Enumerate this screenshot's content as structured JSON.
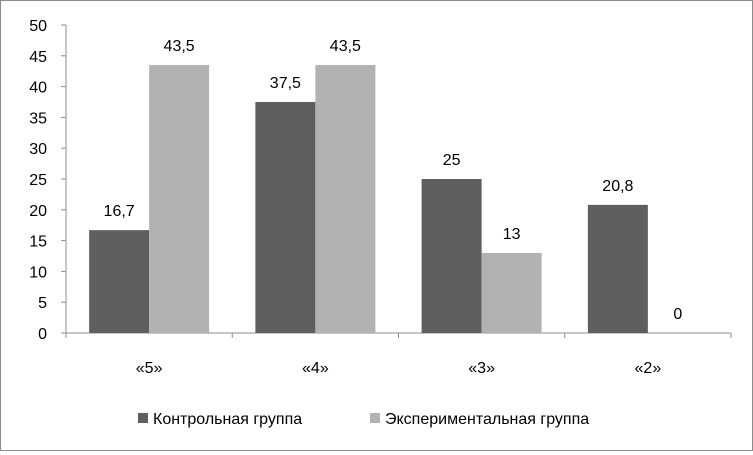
{
  "chart_data": {
    "type": "bar",
    "title": "",
    "xlabel": "",
    "ylabel": "",
    "categories": [
      "«5»",
      "«4»",
      "«3»",
      "«2»"
    ],
    "series": [
      {
        "name": "Контрольная группа",
        "color": "#5f5f5f",
        "values": [
          16.7,
          37.5,
          25,
          20.8
        ],
        "labels": [
          "16,7",
          "37,5",
          "25",
          "20,8"
        ]
      },
      {
        "name": "Экспериментальная группа",
        "color": "#b2b2b2",
        "values": [
          43.5,
          43.5,
          13,
          0
        ],
        "labels": [
          "43,5",
          "43,5",
          "13",
          "0"
        ]
      }
    ],
    "ylim": [
      0,
      50
    ],
    "yticks": [
      0,
      5,
      10,
      15,
      20,
      25,
      30,
      35,
      40,
      45,
      50
    ],
    "grid": false,
    "legend": "bottom"
  }
}
